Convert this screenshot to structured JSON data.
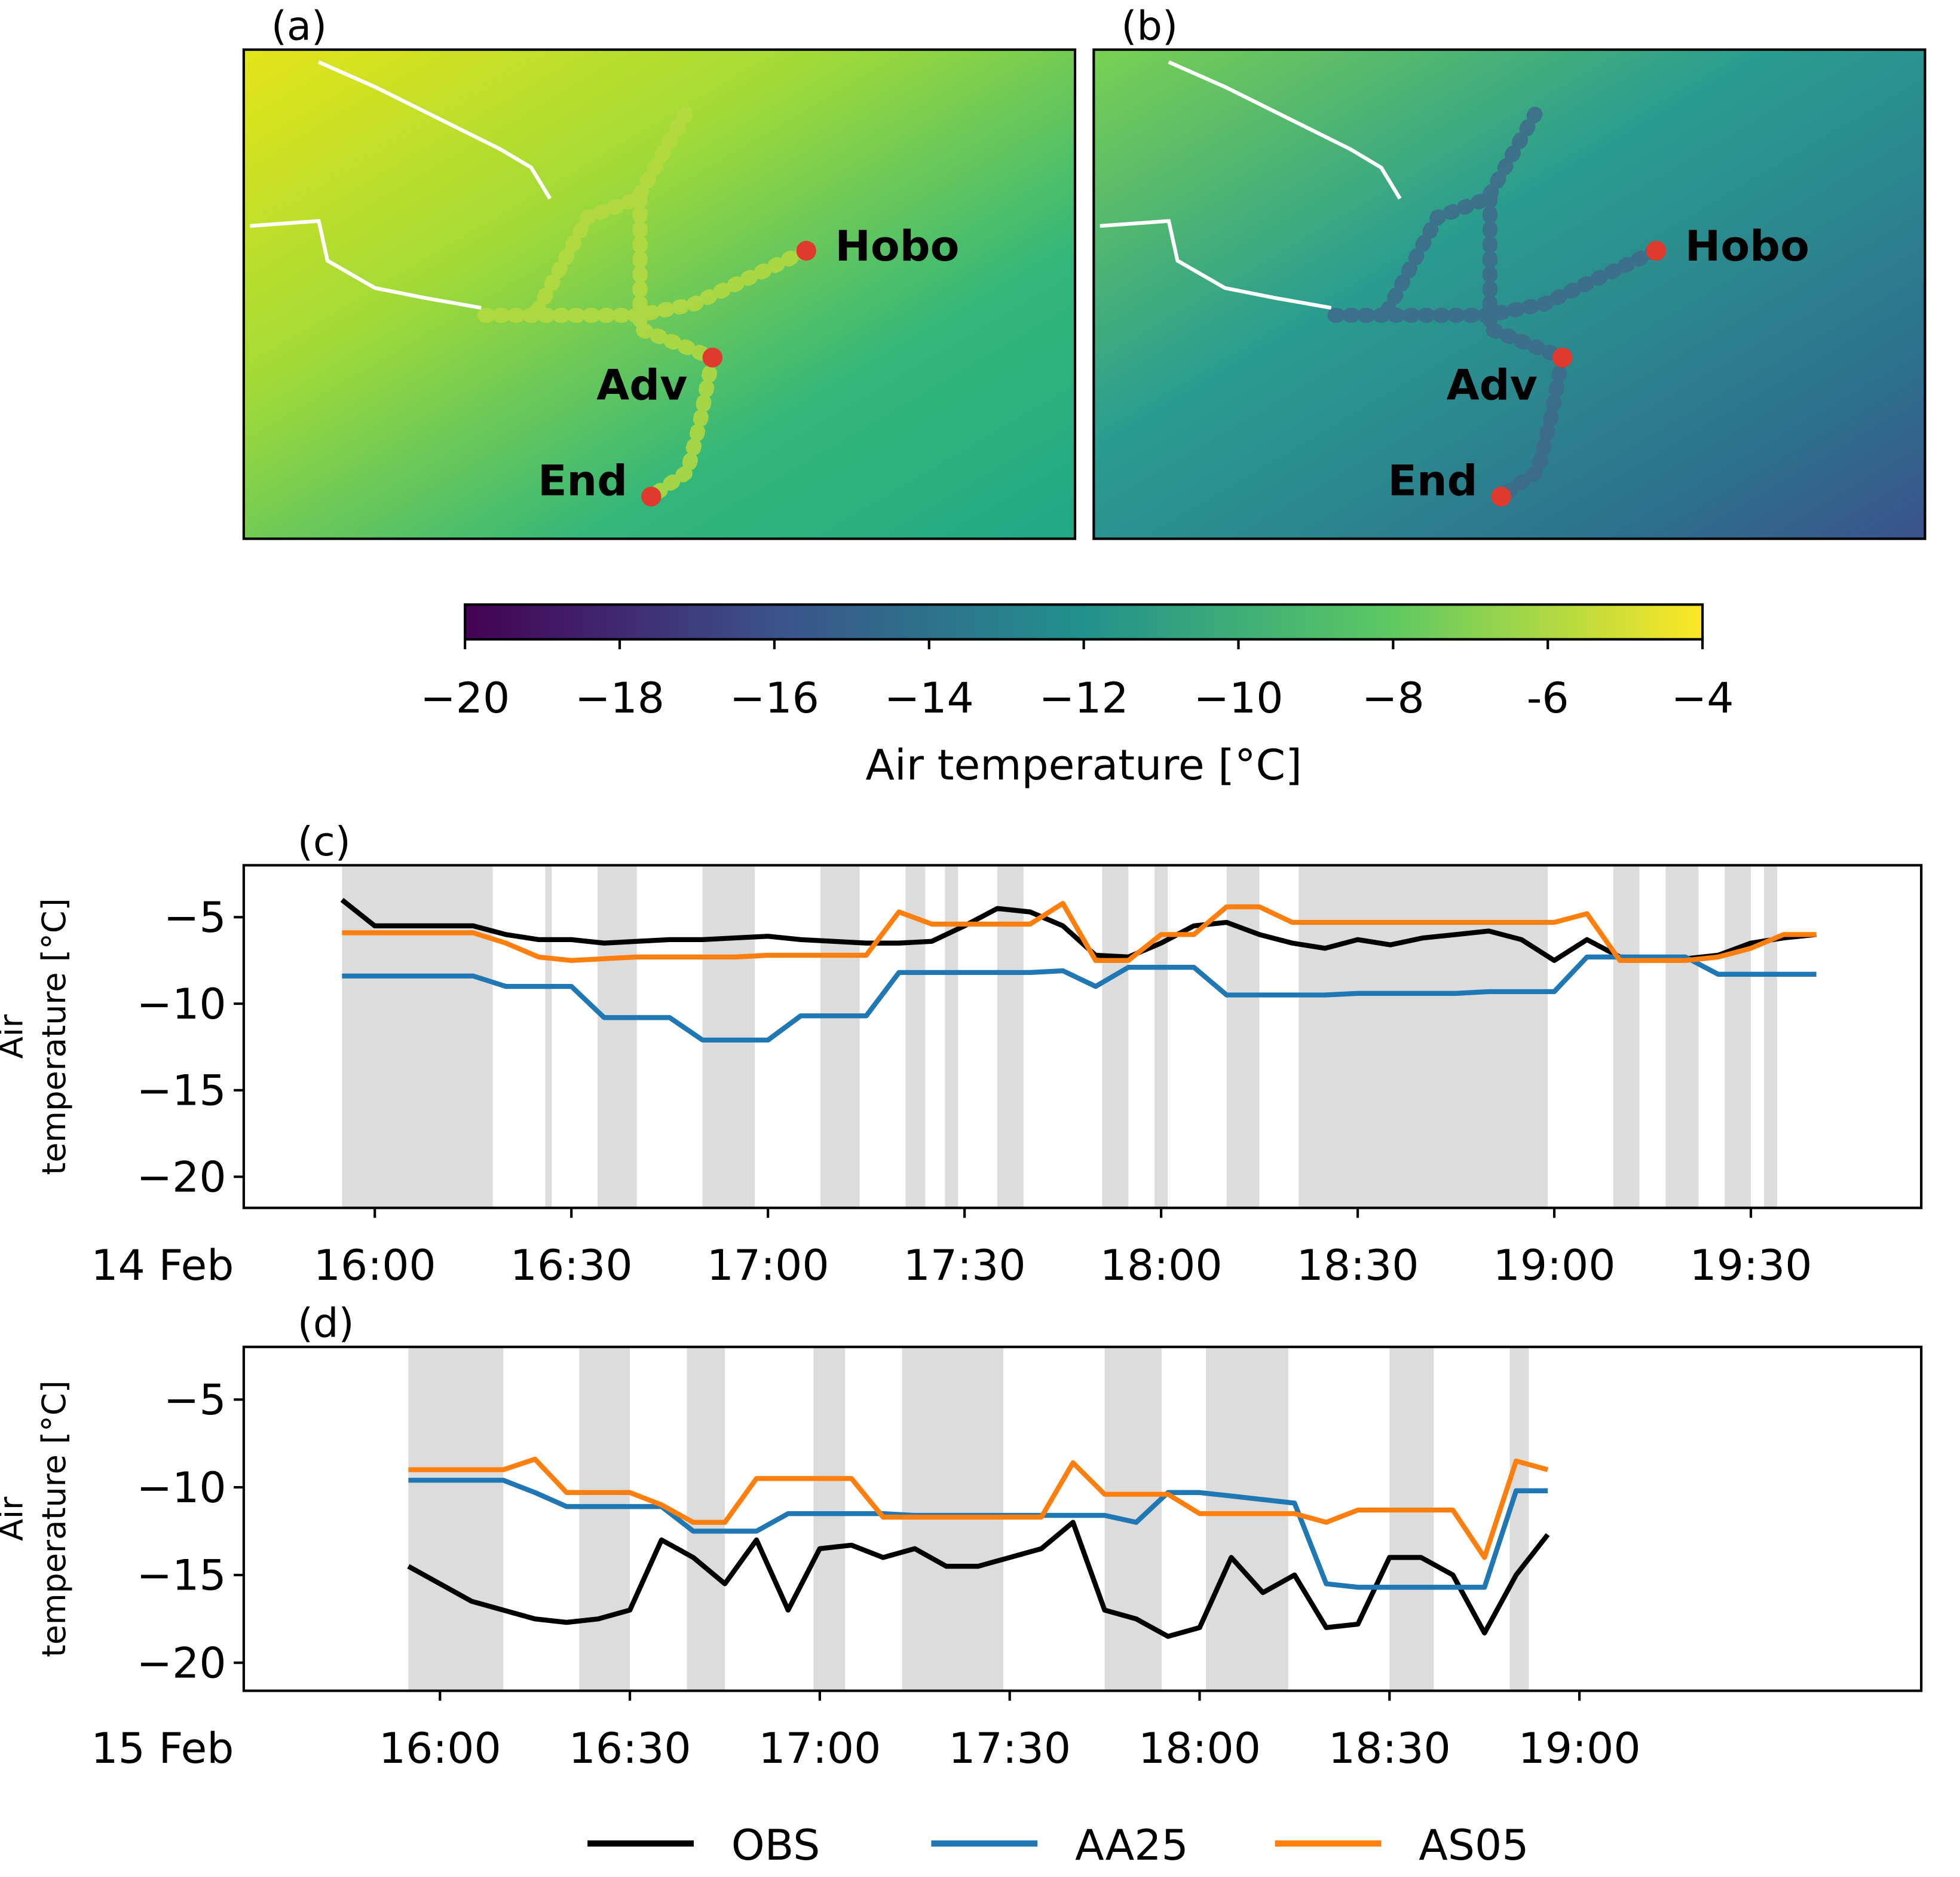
{
  "chart_data": [
    {
      "type": "map",
      "panel": "(a)",
      "labels": [
        "Hobo",
        "Adv",
        "End"
      ]
    },
    {
      "type": "map",
      "panel": "(b)",
      "labels": [
        "Hobo",
        "Adv",
        "End"
      ]
    },
    {
      "type": "colorbar",
      "label": "Air temperature [°C]",
      "clim": [
        -20,
        -4
      ],
      "colors": [
        "#440154",
        "#3b528b",
        "#21918c",
        "#5ec962",
        "#fde725"
      ],
      "ticks": [
        {
          "value": -20,
          "label": "−20"
        },
        {
          "value": -18,
          "label": "−18"
        },
        {
          "value": -16,
          "label": "−16"
        },
        {
          "value": -14,
          "label": "−14"
        },
        {
          "value": -12,
          "label": "−12"
        },
        {
          "value": -10,
          "label": "−10"
        },
        {
          "value": -8,
          "label": "−8"
        },
        {
          "value": -6,
          "label": "-6"
        },
        {
          "value": -4,
          "label": "−4"
        }
      ]
    },
    {
      "type": "line",
      "panel": "(c)",
      "ylabel": [
        "Air",
        "temperature [°C]"
      ],
      "date_label": "14 Feb",
      "xlim": [
        "15:40",
        "19:56"
      ],
      "xticks": [
        "16:00",
        "16:30",
        "17:00",
        "17:30",
        "18:00",
        "18:30",
        "19:00",
        "19:30"
      ],
      "ylim": [
        -21.8,
        -2
      ],
      "yticks": [
        {
          "value": -5,
          "label": "−5"
        },
        {
          "value": -10,
          "label": "−10"
        },
        {
          "value": -15,
          "label": "−15"
        },
        {
          "value": -20,
          "label": "−20"
        }
      ],
      "shaded": [
        [
          "15:55",
          "16:18"
        ],
        [
          "16:26",
          "16:27"
        ],
        [
          "16:34",
          "16:40"
        ],
        [
          "16:50",
          "16:58"
        ],
        [
          "17:08",
          "17:14"
        ],
        [
          "17:21",
          "17:24"
        ],
        [
          "17:27",
          "17:29"
        ],
        [
          "17:35",
          "17:39"
        ],
        [
          "17:51",
          "17:55"
        ],
        [
          "17:59",
          "18:01"
        ],
        [
          "18:10",
          "18:15"
        ],
        [
          "18:21",
          "18:59"
        ],
        [
          "19:09",
          "19:13"
        ],
        [
          "19:17",
          "19:22"
        ],
        [
          "19:26",
          "19:30"
        ],
        [
          "19:32",
          "19:34"
        ]
      ],
      "x": [
        "15:55",
        "16:00",
        "16:05",
        "16:10",
        "16:15",
        "16:20",
        "16:25",
        "16:30",
        "16:35",
        "16:40",
        "16:45",
        "16:50",
        "16:55",
        "17:00",
        "17:05",
        "17:10",
        "17:15",
        "17:20",
        "17:25",
        "17:30",
        "17:35",
        "17:40",
        "17:45",
        "17:50",
        "17:55",
        "18:00",
        "18:05",
        "18:10",
        "18:15",
        "18:20",
        "18:25",
        "18:30",
        "18:35",
        "18:40",
        "18:45",
        "18:50",
        "18:55",
        "19:00",
        "19:05",
        "19:10",
        "19:15",
        "19:20",
        "19:25",
        "19:30",
        "19:35",
        "19:40"
      ],
      "series": [
        {
          "name": "OBS",
          "color": "#000000",
          "values": [
            -4,
            -5.5,
            -5.5,
            -5.5,
            -5.5,
            -6,
            -6.3,
            -6.3,
            -6.5,
            -6.4,
            -6.3,
            -6.3,
            -6.2,
            -6.1,
            -6.3,
            -6.4,
            -6.5,
            -6.5,
            -6.4,
            -5.5,
            -4.5,
            -4.7,
            -5.5,
            -7.2,
            -7.3,
            -6.5,
            -5.5,
            -5.3,
            -6,
            -6.5,
            -6.8,
            -6.3,
            -6.6,
            -6.2,
            -6,
            -5.8,
            -6.3,
            -7.5,
            -6.3,
            -7.3,
            -7.4,
            -7.4,
            -7.2,
            -6.5,
            -6.2,
            -6
          ]
        },
        {
          "name": "AA25",
          "color": "#1f77b4",
          "values": [
            -8.4,
            -8.4,
            -8.4,
            -8.4,
            -8.4,
            -9,
            -9,
            -9,
            -10.8,
            -10.8,
            -10.8,
            -12.1,
            -12.1,
            -12.1,
            -10.7,
            -10.7,
            -10.7,
            -8.2,
            -8.2,
            -8.2,
            -8.2,
            -8.2,
            -8.1,
            -9,
            -7.9,
            -7.9,
            -7.9,
            -9.5,
            -9.5,
            -9.5,
            -9.5,
            -9.4,
            -9.4,
            -9.4,
            -9.4,
            -9.3,
            -9.3,
            -9.3,
            -7.3,
            -7.3,
            -7.3,
            -7.3,
            -8.3,
            -8.3,
            -8.3,
            -8.3
          ]
        },
        {
          "name": "AS05",
          "color": "#ff7f0e",
          "values": [
            -5.9,
            -5.9,
            -5.9,
            -5.9,
            -5.9,
            -6.5,
            -7.3,
            -7.5,
            -7.4,
            -7.3,
            -7.3,
            -7.3,
            -7.3,
            -7.2,
            -7.2,
            -7.2,
            -7.2,
            -4.7,
            -5.4,
            -5.4,
            -5.4,
            -5.4,
            -4.2,
            -7.5,
            -7.5,
            -6,
            -6,
            -4.4,
            -4.4,
            -5.3,
            -5.3,
            -5.3,
            -5.3,
            -5.3,
            -5.3,
            -5.3,
            -5.3,
            -5.3,
            -4.8,
            -7.5,
            -7.5,
            -7.5,
            -7.3,
            -6.8,
            -6,
            -6
          ]
        }
      ]
    },
    {
      "type": "line",
      "panel": "(d)",
      "ylabel": [
        "Air",
        "temperature [°C]"
      ],
      "date_label": "15 Feb",
      "xlim": [
        "15:29",
        "19:54"
      ],
      "xticks": [
        "16:00",
        "16:30",
        "17:00",
        "17:30",
        "18:00",
        "18:30",
        "19:00"
      ],
      "ylim": [
        -21.6,
        -2
      ],
      "yticks": [
        {
          "value": -5,
          "label": "−5"
        },
        {
          "value": -10,
          "label": "−10"
        },
        {
          "value": -15,
          "label": "−15"
        },
        {
          "value": -20,
          "label": "−20"
        }
      ],
      "shaded": [
        [
          "15:55",
          "16:10"
        ],
        [
          "16:22",
          "16:30"
        ],
        [
          "16:39",
          "16:45"
        ],
        [
          "16:59",
          "17:04"
        ],
        [
          "17:13",
          "17:29"
        ],
        [
          "17:45",
          "17:54"
        ],
        [
          "18:01",
          "18:14"
        ],
        [
          "18:30",
          "18:37"
        ],
        [
          "18:49",
          "18:52"
        ]
      ],
      "x": [
        "15:55",
        "16:00",
        "16:05",
        "16:10",
        "16:15",
        "16:20",
        "16:25",
        "16:30",
        "16:35",
        "16:40",
        "16:45",
        "16:50",
        "16:55",
        "17:00",
        "17:05",
        "17:10",
        "17:15",
        "17:20",
        "17:25",
        "17:30",
        "17:35",
        "17:40",
        "17:45",
        "17:50",
        "17:55",
        "18:00",
        "18:05",
        "18:10",
        "18:15",
        "18:20",
        "18:25",
        "18:30",
        "18:35",
        "18:40",
        "18:45",
        "18:50",
        "18:55"
      ],
      "series": [
        {
          "name": "OBS",
          "color": "#000000",
          "values": [
            -14.5,
            -15.5,
            -16.5,
            -17,
            -17.5,
            -17.7,
            -17.5,
            -17,
            -13,
            -14,
            -15.5,
            -13,
            -17,
            -13.5,
            -13.3,
            -14,
            -13.5,
            -14.5,
            -14.5,
            -14,
            -13.5,
            -12,
            -17,
            -17.5,
            -18.5,
            -18,
            -14,
            -16,
            -15,
            -18,
            -17.8,
            -14,
            -14,
            -15,
            -18.3,
            -15,
            -12.7
          ]
        },
        {
          "name": "AA25",
          "color": "#1f77b4",
          "values": [
            -9.6,
            -9.6,
            -9.6,
            -9.6,
            -10.3,
            -11.1,
            -11.1,
            -11.1,
            -11.1,
            -12.5,
            -12.5,
            -12.5,
            -11.5,
            -11.5,
            -11.5,
            -11.5,
            -11.6,
            -11.6,
            -11.6,
            -11.6,
            -11.6,
            -11.6,
            -11.6,
            -12,
            -10.3,
            -10.3,
            -10.5,
            -10.7,
            -10.9,
            -15.5,
            -15.7,
            -15.7,
            -15.7,
            -15.7,
            -15.7,
            -10.2,
            -10.2
          ]
        },
        {
          "name": "AS05",
          "color": "#ff7f0e",
          "values": [
            -9,
            -9,
            -9,
            -9,
            -8.4,
            -10.3,
            -10.3,
            -10.3,
            -11,
            -12,
            -12,
            -9.5,
            -9.5,
            -9.5,
            -9.5,
            -11.7,
            -11.7,
            -11.7,
            -11.7,
            -11.7,
            -11.7,
            -8.6,
            -10.4,
            -10.4,
            -10.4,
            -11.5,
            -11.5,
            -11.5,
            -11.5,
            -12,
            -11.3,
            -11.3,
            -11.3,
            -11.3,
            -14,
            -8.5,
            -9
          ]
        }
      ]
    }
  ]
}
